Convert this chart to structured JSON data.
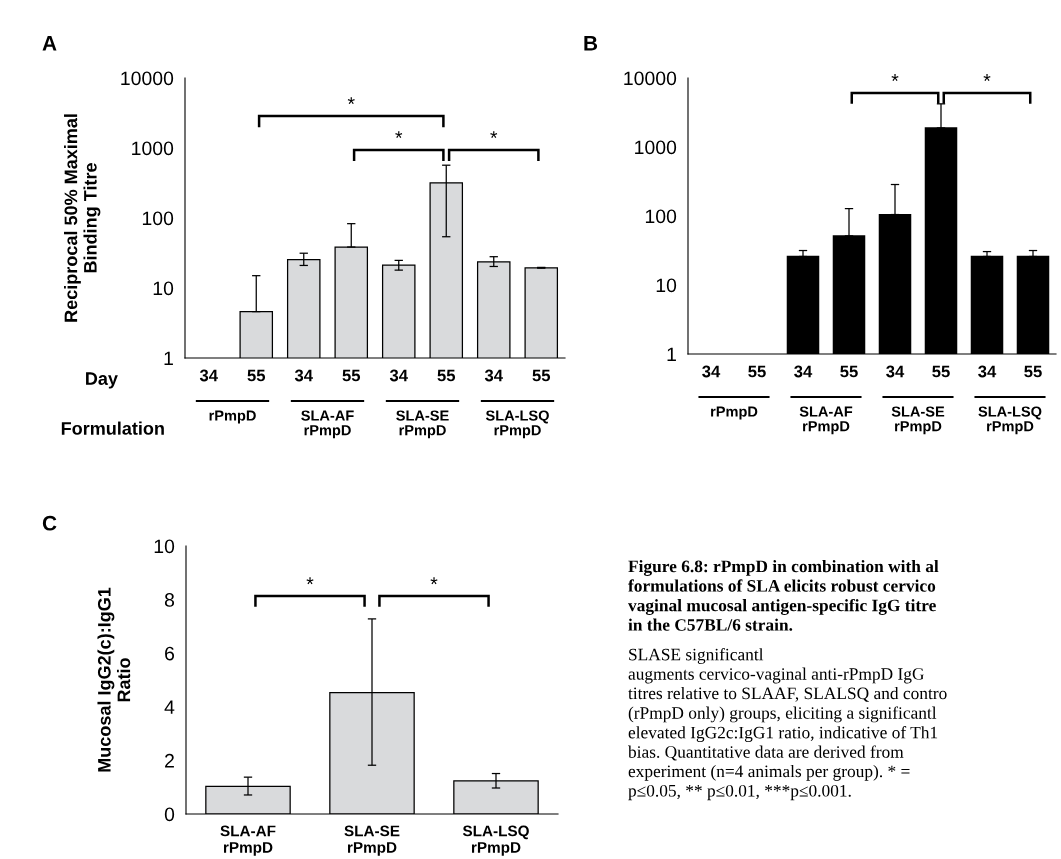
{
  "chart_data": [
    {
      "type": "bar",
      "title": "A",
      "ylabel": "Reciprocal 50% Maximal\nBinding Titre",
      "log": true,
      "ylim": [
        1,
        10000
      ],
      "yticks": [
        1,
        10,
        100,
        1000,
        10000
      ],
      "grid": false,
      "categories": [
        "34",
        "55",
        "34",
        "55",
        "34",
        "55",
        "34",
        "55"
      ],
      "series": [
        {
          "color": "#d9dadc",
          "values": [
            null,
            4.6,
            25.4,
            38.5,
            21.3,
            318,
            23.7,
            19.4
          ],
          "errors": [
            null,
            [
              4.6,
              15
            ],
            [
              21,
              31.4
            ],
            [
              38.5,
              83
            ],
            [
              18,
              24.8
            ],
            [
              54,
              568
            ],
            [
              20.3,
              28
            ],
            [
              19.2,
              19.7
            ]
          ]
        }
      ],
      "annotations": [
        "*",
        "*",
        "*",
        "Day",
        "Formulation",
        "rPmpD",
        "SLA-AF\nrPmpD",
        "SLA-SE\nrPmpD",
        "SLA-LSQ\nrPmpD"
      ]
    },
    {
      "type": "bar",
      "title": "B",
      "log": true,
      "ylim": [
        1,
        10000
      ],
      "yticks": [
        1,
        10,
        100,
        1000,
        10000
      ],
      "grid": false,
      "categories": [
        "34",
        "55",
        "34",
        "55",
        "34",
        "55",
        "34",
        "55"
      ],
      "series": [
        {
          "color": "#000000",
          "values": [
            null,
            null,
            25.9,
            51.5,
            105,
            1890,
            25.9,
            25.9
          ],
          "errors": [
            null,
            null,
            [
              25.9,
              31.6
            ],
            [
              51.5,
              128
            ],
            [
              105,
              286
            ],
            [
              1890,
              4220
            ],
            [
              25.9,
              30.5
            ],
            [
              25.9,
              31.6
            ]
          ]
        }
      ],
      "annotations": [
        "*",
        "*",
        "rPmpD",
        "SLA-AF\nrPmpD",
        "SLA-SE\nrPmpD",
        "SLA-LSQ\nrPmpD"
      ]
    },
    {
      "type": "bar",
      "title": "C",
      "ylabel": "Mucosal IgG2(c):IgG1\nRatio",
      "ylim": [
        0,
        10
      ],
      "yticks": [
        0,
        2,
        4,
        6,
        8,
        10
      ],
      "grid": false,
      "categories": [
        "SLA-AF\nrPmpD",
        "SLA-SE\nrPmpD",
        "SLA-LSQ\nrPmpD"
      ],
      "series": [
        {
          "color": "#d9dadc",
          "values": [
            1.03,
            4.53,
            1.24
          ],
          "errors": [
            [
              0.71,
              1.375
            ],
            [
              1.82,
              7.28
            ],
            [
              0.97,
              1.51
            ]
          ]
        }
      ],
      "annotations": [
        "*",
        "*",
        "Figure 6.8: rPmpD in combination with al\nformulations of SLA elicits robust cervico\nvaginal mucosal antigen-specific IgG titre\nin the C57BL/6 strain.",
        "SLASE significantl\naugments cervico-vaginal anti-rPmpD IgG\ntitres relative to SLAAF, SLALSQ and contro\n(rPmpD only) groups, eliciting a significantl\nelevated IgG2c:IgG1 ratio, indicative of Th1\nbias. Quantitative data are derived from\nexperiment (n=4 animals per group). * =\np≤0.05, ** p≤0.01, ***p≤0.001."
      ]
    }
  ]
}
